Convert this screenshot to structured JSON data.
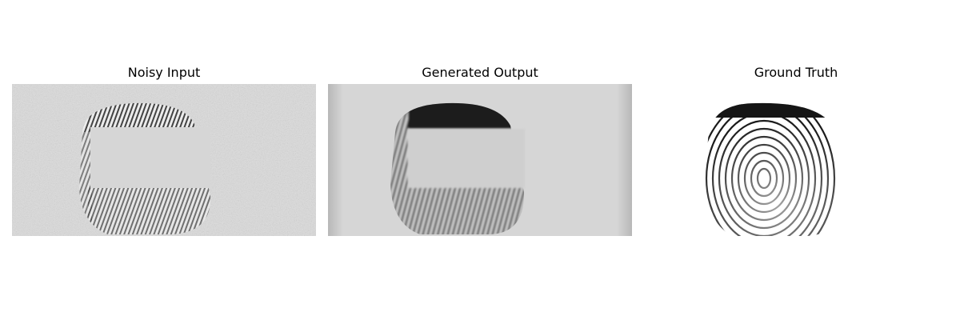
{
  "panels": [
    {
      "title": "Noisy Input"
    },
    {
      "title": "Generated Output"
    },
    {
      "title": "Ground Truth"
    }
  ],
  "colors": {
    "noisy_background": "#dcdcdc",
    "generated_background": "#d2d2d2",
    "ground_truth_background": "#ffffff",
    "mask_gray": "#d6d6d6",
    "ridge_dark": "#1a1a1a"
  }
}
